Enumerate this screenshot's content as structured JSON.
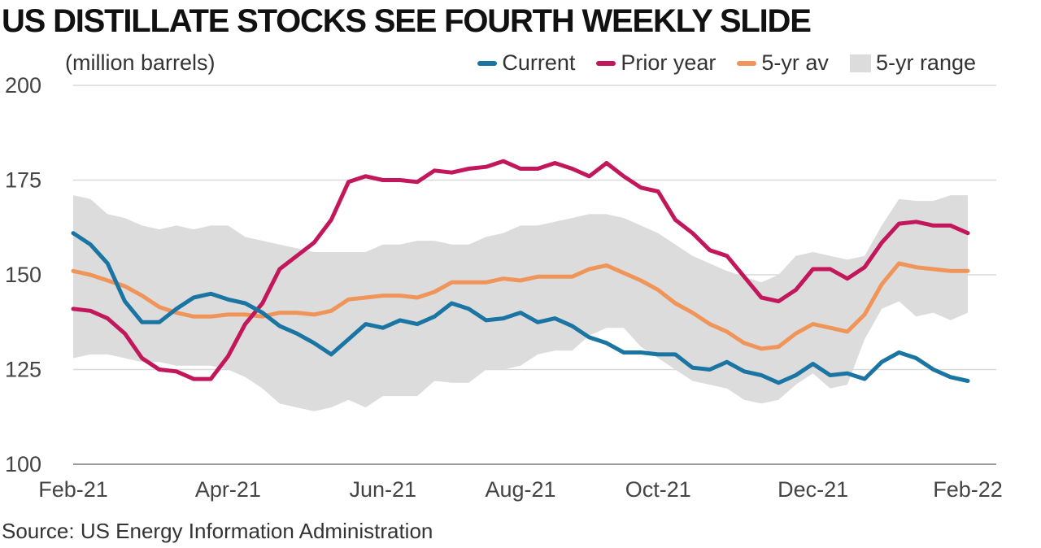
{
  "title": "US DISTILLATE STOCKS SEE FOURTH WEEKLY SLIDE",
  "source": "Source: US Energy Information Administration",
  "chart_data": {
    "type": "line",
    "ylabel": "(million barrels)",
    "ylim": [
      100,
      200
    ],
    "yticks": [
      "200",
      "175",
      "150",
      "125",
      "100"
    ],
    "ytick_values": [
      200,
      175,
      150,
      125,
      100
    ],
    "xtick_labels": [
      "Feb-21",
      "Apr-21",
      "Jun-21",
      "Aug-21",
      "Oct-21",
      "Dec-21",
      "Feb-22"
    ],
    "xtick_index": [
      0,
      9,
      18,
      26,
      34,
      43,
      52
    ],
    "grid": "horizontal",
    "legend_position": "top-right",
    "x_count": 53,
    "series": [
      {
        "name": "Current",
        "color": "#1a75a3",
        "values": [
          161,
          158,
          153,
          143,
          137.5,
          137.5,
          141,
          144,
          145,
          143.5,
          142.5,
          140,
          136.5,
          134.5,
          132,
          129,
          133,
          137,
          136,
          138,
          137,
          139,
          142.5,
          141,
          138,
          138.5,
          140,
          137.5,
          138.5,
          136.5,
          133.5,
          132,
          129.5,
          129.5,
          129,
          129,
          125.5,
          125,
          127,
          124.5,
          123.5,
          121.5,
          123.5,
          126.5,
          123.5,
          124,
          122.5,
          127,
          129.5,
          128,
          125,
          123,
          122
        ]
      },
      {
        "name": "Prior year",
        "color": "#c2185b",
        "values": [
          141,
          140.5,
          138.5,
          134.5,
          128,
          125,
          124.5,
          122.5,
          122.5,
          128.5,
          137,
          142.5,
          151.5,
          155,
          158.5,
          164.5,
          174.5,
          176,
          175,
          175,
          174.5,
          177.5,
          177,
          178,
          178.5,
          180,
          178,
          178,
          179.5,
          178,
          176,
          179.5,
          176,
          173,
          172,
          164.5,
          161,
          156.5,
          155,
          149.5,
          144,
          143,
          146,
          151.5,
          151.5,
          149,
          152,
          158.5,
          163.5,
          164,
          163,
          163,
          161
        ]
      },
      {
        "name": "5-yr av",
        "color": "#f0955a",
        "values": [
          151,
          150,
          148.5,
          147,
          144.5,
          141.5,
          140,
          139,
          139,
          139.5,
          139.5,
          139,
          140,
          140,
          139.5,
          140.5,
          143.5,
          144,
          144.5,
          144.5,
          144,
          145.5,
          148,
          148,
          148,
          149,
          148.5,
          149.5,
          149.5,
          149.5,
          151.5,
          152.5,
          150.5,
          148.5,
          146,
          142.5,
          140,
          137,
          135,
          132,
          130.5,
          131,
          134.5,
          137,
          136,
          135,
          139.5,
          147.5,
          153,
          152,
          151.5,
          151,
          151
        ]
      },
      {
        "name": "5-yr range",
        "color": "#dcdcdc",
        "lower": [
          128,
          129,
          129,
          128,
          127,
          127,
          126,
          126,
          126,
          125,
          123,
          120,
          116,
          115,
          114,
          115,
          117,
          115,
          118,
          118,
          118,
          122,
          121.5,
          121.5,
          125,
          125,
          126,
          129,
          130,
          130,
          134,
          136,
          136,
          131,
          128,
          125,
          122,
          121,
          120,
          117,
          116,
          117,
          121,
          124,
          120,
          121,
          133,
          141,
          143,
          139,
          140,
          138,
          140
        ],
        "upper": [
          171,
          170,
          166,
          165,
          163,
          162,
          163,
          162,
          163,
          163,
          160,
          159,
          158,
          157,
          156,
          156,
          156,
          156,
          158,
          158,
          159,
          159,
          158,
          158,
          160,
          161,
          163,
          163,
          164,
          165,
          166,
          166,
          165,
          163,
          161,
          158,
          155,
          153,
          151,
          149.5,
          148,
          150,
          155,
          156,
          155,
          154,
          155,
          163,
          170,
          169.5,
          169.5,
          171,
          171
        ]
      }
    ]
  }
}
